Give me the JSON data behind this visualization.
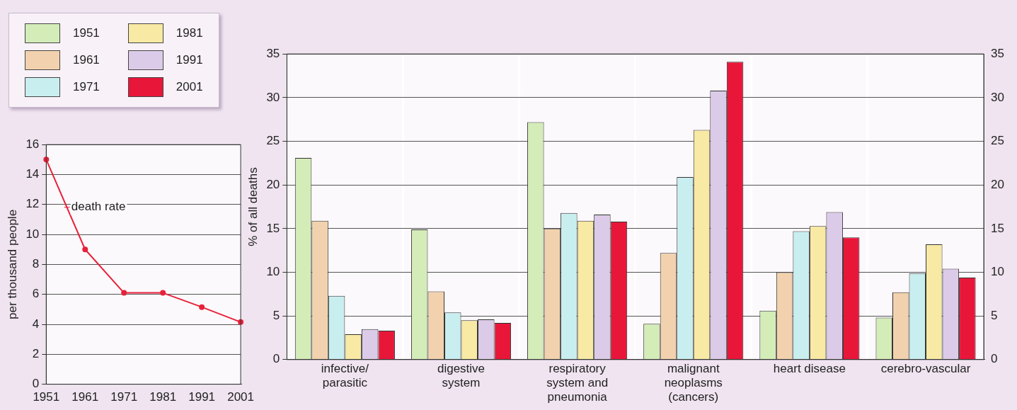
{
  "chart_data": [
    {
      "type": "line",
      "ylabel": "per thousand people",
      "categories": [
        "1951",
        "1961",
        "1971",
        "1981",
        "1991",
        "2001"
      ],
      "series": [
        {
          "name": "death rate",
          "color": "#e8213a",
          "values": [
            15,
            9,
            6.1,
            6.1,
            5.15,
            4.15
          ]
        }
      ],
      "ylim": [
        0,
        16
      ],
      "yticks": [
        0,
        2,
        4,
        6,
        8,
        10,
        12,
        14,
        16
      ],
      "grid": "y",
      "marker": "circle"
    },
    {
      "type": "bar",
      "ylabel": "% of all deaths",
      "categories": [
        "infective/parasitic",
        "digestive system",
        "respiratory system and pneumonia",
        "malignant neoplasms (cancers)",
        "heart disease",
        "cerebro-vascular"
      ],
      "series": [
        {
          "name": "1951",
          "color": "#d4ecb8",
          "values": [
            23.1,
            14.9,
            27.2,
            4.1,
            5.6,
            4.8
          ]
        },
        {
          "name": "1961",
          "color": "#f2d2ae",
          "values": [
            15.9,
            7.8,
            15.0,
            12.2,
            10.0,
            7.7
          ]
        },
        {
          "name": "1971",
          "color": "#c9eef0",
          "values": [
            7.3,
            5.4,
            16.8,
            20.9,
            14.7,
            9.9
          ]
        },
        {
          "name": "1981",
          "color": "#f8e9a4",
          "values": [
            2.9,
            4.5,
            15.9,
            26.3,
            15.3,
            13.2
          ]
        },
        {
          "name": "1991",
          "color": "#dccbe8",
          "values": [
            3.5,
            4.6,
            16.6,
            30.8,
            16.9,
            10.4
          ]
        },
        {
          "name": "2001",
          "color": "#e8173a",
          "values": [
            3.3,
            4.2,
            15.8,
            34.1,
            14.0,
            9.4
          ]
        }
      ],
      "ylim": [
        0,
        35
      ],
      "yticks": [
        0,
        5,
        10,
        15,
        20,
        25,
        30,
        35
      ],
      "y2lim": [
        0,
        35
      ],
      "y2ticks": [
        0,
        5,
        10,
        15,
        20,
        25,
        30,
        35
      ],
      "grid": true,
      "legend": "top left"
    }
  ]
}
